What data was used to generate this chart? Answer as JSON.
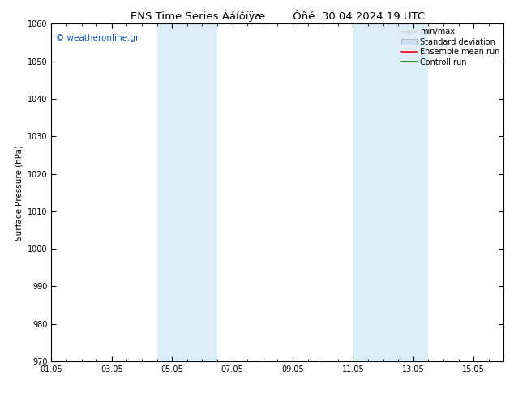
{
  "title_left": "ENS Time Series Âáíôïÿæ",
  "title_right": "Ôñé. 30.04.2024 19 UTC",
  "ylabel": "Surface Pressure (hPa)",
  "ylim": [
    970,
    1060
  ],
  "yticks": [
    970,
    980,
    990,
    1000,
    1010,
    1020,
    1030,
    1040,
    1050,
    1060
  ],
  "xlim_start": 0,
  "xlim_end": 15,
  "xtick_labels": [
    "01.05",
    "03.05",
    "05.05",
    "07.05",
    "09.05",
    "11.05",
    "13.05",
    "15.05"
  ],
  "xtick_positions": [
    0,
    2,
    4,
    6,
    8,
    10,
    12,
    14
  ],
  "shaded_bands": [
    {
      "x_start": 3.5,
      "x_end": 5.5
    },
    {
      "x_start": 10.0,
      "x_end": 12.5
    }
  ],
  "shaded_color": "#ddeef8",
  "watermark_text": "© weatheronline.gr",
  "watermark_color": "#1155bb",
  "bg_color": "#ffffff",
  "title_fontsize": 9.5,
  "axis_fontsize": 7.5,
  "tick_fontsize": 7,
  "legend_fontsize": 7
}
